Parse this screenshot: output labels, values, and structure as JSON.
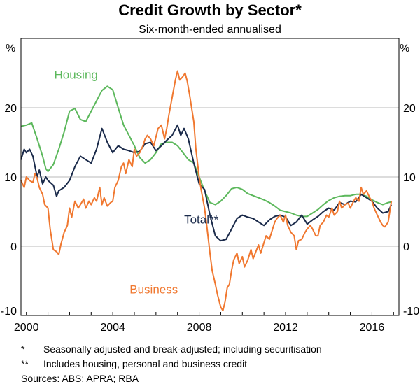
{
  "chart_data": {
    "type": "line",
    "title": "Credit Growth by Sector*",
    "subtitle": "Six-month-ended annualised",
    "ylabel_left": "%",
    "ylabel_right": "%",
    "ylim": [
      -10,
      30
    ],
    "yticks": [
      -10,
      0,
      10,
      20
    ],
    "xlim": [
      1999.75,
      2017.25
    ],
    "xticks": [
      2000,
      2004,
      2008,
      2012,
      2016
    ],
    "grid": true,
    "series": [
      {
        "name": "Housing",
        "color": "#5cb85c",
        "label_at": [
          2002.3,
          24.2
        ],
        "points": [
          [
            1999.75,
            17.3
          ],
          [
            2000.0,
            17.5
          ],
          [
            2000.25,
            17.8
          ],
          [
            2000.5,
            15.5
          ],
          [
            2000.75,
            13.0
          ],
          [
            2000.9,
            11.2
          ],
          [
            2001.0,
            10.8
          ],
          [
            2001.25,
            11.8
          ],
          [
            2001.5,
            14.0
          ],
          [
            2001.75,
            16.5
          ],
          [
            2002.0,
            19.5
          ],
          [
            2002.25,
            19.9
          ],
          [
            2002.5,
            18.3
          ],
          [
            2002.75,
            18.0
          ],
          [
            2003.0,
            19.5
          ],
          [
            2003.25,
            21.0
          ],
          [
            2003.5,
            22.5
          ],
          [
            2003.75,
            23.1
          ],
          [
            2004.0,
            22.6
          ],
          [
            2004.25,
            20.0
          ],
          [
            2004.5,
            17.5
          ],
          [
            2004.75,
            16.0
          ],
          [
            2005.0,
            14.5
          ],
          [
            2005.25,
            12.8
          ],
          [
            2005.5,
            12.0
          ],
          [
            2005.75,
            12.5
          ],
          [
            2006.0,
            13.5
          ],
          [
            2006.25,
            14.8
          ],
          [
            2006.5,
            15.0
          ],
          [
            2006.75,
            15.0
          ],
          [
            2007.0,
            14.5
          ],
          [
            2007.25,
            13.5
          ],
          [
            2007.5,
            12.5
          ],
          [
            2007.75,
            12.0
          ],
          [
            2008.0,
            10.0
          ],
          [
            2008.25,
            8.0
          ],
          [
            2008.5,
            6.3
          ],
          [
            2008.75,
            6.0
          ],
          [
            2009.0,
            6.5
          ],
          [
            2009.25,
            7.3
          ],
          [
            2009.5,
            8.3
          ],
          [
            2009.75,
            8.5
          ],
          [
            2010.0,
            8.2
          ],
          [
            2010.25,
            7.6
          ],
          [
            2010.5,
            7.3
          ],
          [
            2010.75,
            7.0
          ],
          [
            2011.0,
            6.7
          ],
          [
            2011.25,
            6.3
          ],
          [
            2011.5,
            5.8
          ],
          [
            2011.75,
            5.2
          ],
          [
            2012.0,
            5.0
          ],
          [
            2012.25,
            4.8
          ],
          [
            2012.5,
            4.5
          ],
          [
            2012.75,
            4.3
          ],
          [
            2013.0,
            4.3
          ],
          [
            2013.25,
            4.8
          ],
          [
            2013.5,
            5.3
          ],
          [
            2013.75,
            6.0
          ],
          [
            2014.0,
            6.6
          ],
          [
            2014.25,
            7.0
          ],
          [
            2014.5,
            7.2
          ],
          [
            2014.75,
            7.3
          ],
          [
            2015.0,
            7.3
          ],
          [
            2015.25,
            7.5
          ],
          [
            2015.5,
            7.5
          ],
          [
            2015.75,
            7.2
          ],
          [
            2016.0,
            6.7
          ],
          [
            2016.25,
            6.3
          ],
          [
            2016.5,
            6.0
          ],
          [
            2016.75,
            6.3
          ],
          [
            2016.9,
            6.4
          ]
        ]
      },
      {
        "name": "Total**",
        "color": "#1a2a4a",
        "label_at": [
          2008.1,
          3.3
        ],
        "points": [
          [
            1999.75,
            12.5
          ],
          [
            1999.9,
            14.0
          ],
          [
            2000.0,
            13.5
          ],
          [
            2000.15,
            14.0
          ],
          [
            2000.3,
            13.0
          ],
          [
            2000.5,
            10.0
          ],
          [
            2000.6,
            11.0
          ],
          [
            2000.75,
            9.0
          ],
          [
            2000.9,
            10.0
          ],
          [
            2001.0,
            9.5
          ],
          [
            2001.25,
            8.8
          ],
          [
            2001.4,
            7.2
          ],
          [
            2001.5,
            8.0
          ],
          [
            2001.75,
            8.5
          ],
          [
            2002.0,
            9.5
          ],
          [
            2002.25,
            11.5
          ],
          [
            2002.5,
            13.0
          ],
          [
            2002.75,
            12.5
          ],
          [
            2003.0,
            12.0
          ],
          [
            2003.25,
            14.0
          ],
          [
            2003.5,
            17.0
          ],
          [
            2003.75,
            15.0
          ],
          [
            2004.0,
            13.5
          ],
          [
            2004.25,
            14.5
          ],
          [
            2004.5,
            14.0
          ],
          [
            2004.75,
            13.8
          ],
          [
            2005.0,
            13.5
          ],
          [
            2005.25,
            13.7
          ],
          [
            2005.5,
            14.8
          ],
          [
            2005.75,
            15.0
          ],
          [
            2006.0,
            13.8
          ],
          [
            2006.25,
            14.5
          ],
          [
            2006.5,
            15.3
          ],
          [
            2006.75,
            16.0
          ],
          [
            2007.0,
            17.5
          ],
          [
            2007.15,
            16.0
          ],
          [
            2007.3,
            17.0
          ],
          [
            2007.5,
            15.5
          ],
          [
            2007.75,
            12.0
          ],
          [
            2008.0,
            9.0
          ],
          [
            2008.25,
            8.2
          ],
          [
            2008.5,
            4.5
          ],
          [
            2008.75,
            1.5
          ],
          [
            2009.0,
            0.8
          ],
          [
            2009.25,
            1.0
          ],
          [
            2009.5,
            2.5
          ],
          [
            2009.75,
            4.0
          ],
          [
            2010.0,
            4.5
          ],
          [
            2010.25,
            4.2
          ],
          [
            2010.5,
            4.0
          ],
          [
            2010.75,
            3.5
          ],
          [
            2011.0,
            3.0
          ],
          [
            2011.25,
            3.8
          ],
          [
            2011.5,
            4.3
          ],
          [
            2011.75,
            4.5
          ],
          [
            2012.0,
            4.2
          ],
          [
            2012.25,
            3.0
          ],
          [
            2012.5,
            3.5
          ],
          [
            2012.75,
            4.5
          ],
          [
            2013.0,
            3.2
          ],
          [
            2013.25,
            3.8
          ],
          [
            2013.5,
            4.3
          ],
          [
            2013.75,
            5.0
          ],
          [
            2014.0,
            5.5
          ],
          [
            2014.25,
            5.2
          ],
          [
            2014.5,
            6.3
          ],
          [
            2014.75,
            6.0
          ],
          [
            2015.0,
            6.5
          ],
          [
            2015.25,
            6.4
          ],
          [
            2015.5,
            7.5
          ],
          [
            2015.75,
            7.0
          ],
          [
            2016.0,
            6.5
          ],
          [
            2016.25,
            5.5
          ],
          [
            2016.5,
            4.8
          ],
          [
            2016.75,
            5.0
          ],
          [
            2016.9,
            6.0
          ]
        ]
      },
      {
        "name": "Business",
        "color": "#f07830",
        "label_at": [
          2005.9,
          -6.8
        ],
        "points": [
          [
            1999.75,
            9.5
          ],
          [
            1999.9,
            8.5
          ],
          [
            2000.0,
            10.0
          ],
          [
            2000.15,
            9.5
          ],
          [
            2000.3,
            9.2
          ],
          [
            2000.4,
            10.5
          ],
          [
            2000.5,
            9.8
          ],
          [
            2000.6,
            8.5
          ],
          [
            2000.75,
            7.5
          ],
          [
            2000.85,
            6.0
          ],
          [
            2001.0,
            5.5
          ],
          [
            2001.1,
            2.5
          ],
          [
            2001.25,
            -0.5
          ],
          [
            2001.4,
            -0.8
          ],
          [
            2001.5,
            -1.2
          ],
          [
            2001.6,
            0.3
          ],
          [
            2001.75,
            2.0
          ],
          [
            2001.9,
            3.0
          ],
          [
            2002.0,
            5.5
          ],
          [
            2002.1,
            4.2
          ],
          [
            2002.25,
            6.5
          ],
          [
            2002.4,
            5.5
          ],
          [
            2002.5,
            6.0
          ],
          [
            2002.65,
            6.8
          ],
          [
            2002.75,
            5.5
          ],
          [
            2002.9,
            6.5
          ],
          [
            2003.0,
            6.0
          ],
          [
            2003.15,
            7.0
          ],
          [
            2003.25,
            6.5
          ],
          [
            2003.4,
            8.5
          ],
          [
            2003.5,
            6.0
          ],
          [
            2003.6,
            7.0
          ],
          [
            2003.75,
            5.8
          ],
          [
            2003.9,
            6.3
          ],
          [
            2004.0,
            6.5
          ],
          [
            2004.1,
            8.5
          ],
          [
            2004.25,
            9.5
          ],
          [
            2004.4,
            11.5
          ],
          [
            2004.5,
            12.0
          ],
          [
            2004.6,
            10.5
          ],
          [
            2004.75,
            12.5
          ],
          [
            2004.9,
            11.5
          ],
          [
            2005.0,
            14.0
          ],
          [
            2005.1,
            13.0
          ],
          [
            2005.25,
            13.5
          ],
          [
            2005.4,
            14.5
          ],
          [
            2005.5,
            15.5
          ],
          [
            2005.6,
            16.0
          ],
          [
            2005.75,
            15.5
          ],
          [
            2005.9,
            14.5
          ],
          [
            2006.0,
            15.8
          ],
          [
            2006.1,
            17.0
          ],
          [
            2006.25,
            17.5
          ],
          [
            2006.4,
            15.5
          ],
          [
            2006.5,
            17.0
          ],
          [
            2006.6,
            19.0
          ],
          [
            2006.75,
            21.5
          ],
          [
            2006.9,
            24.0
          ],
          [
            2007.0,
            25.3
          ],
          [
            2007.1,
            24.0
          ],
          [
            2007.25,
            24.5
          ],
          [
            2007.35,
            25.0
          ],
          [
            2007.45,
            23.8
          ],
          [
            2007.55,
            22.0
          ],
          [
            2007.65,
            20.0
          ],
          [
            2007.75,
            18.0
          ],
          [
            2007.85,
            14.0
          ],
          [
            2008.0,
            10.0
          ],
          [
            2008.1,
            8.0
          ],
          [
            2008.25,
            5.5
          ],
          [
            2008.35,
            3.0
          ],
          [
            2008.5,
            -1.0
          ],
          [
            2008.6,
            -3.5
          ],
          [
            2008.75,
            -5.5
          ],
          [
            2008.85,
            -7.0
          ],
          [
            2009.0,
            -8.8
          ],
          [
            2009.1,
            -9.3
          ],
          [
            2009.2,
            -8.0
          ],
          [
            2009.3,
            -6.0
          ],
          [
            2009.4,
            -5.5
          ],
          [
            2009.5,
            -3.5
          ],
          [
            2009.6,
            -2.0
          ],
          [
            2009.75,
            -1.0
          ],
          [
            2009.85,
            -2.5
          ],
          [
            2010.0,
            -1.5
          ],
          [
            2010.1,
            -3.0
          ],
          [
            2010.25,
            -2.0
          ],
          [
            2010.4,
            -0.5
          ],
          [
            2010.5,
            -1.8
          ],
          [
            2010.6,
            -1.0
          ],
          [
            2010.75,
            0.2
          ],
          [
            2010.85,
            -1.0
          ],
          [
            2011.0,
            0.5
          ],
          [
            2011.1,
            1.5
          ],
          [
            2011.25,
            1.0
          ],
          [
            2011.4,
            2.5
          ],
          [
            2011.5,
            3.5
          ],
          [
            2011.6,
            4.0
          ],
          [
            2011.75,
            4.5
          ],
          [
            2011.9,
            3.5
          ],
          [
            2012.0,
            4.5
          ],
          [
            2012.1,
            3.0
          ],
          [
            2012.25,
            2.0
          ],
          [
            2012.4,
            1.5
          ],
          [
            2012.5,
            -0.5
          ],
          [
            2012.6,
            0.8
          ],
          [
            2012.75,
            1.0
          ],
          [
            2012.9,
            2.0
          ],
          [
            2013.0,
            2.5
          ],
          [
            2013.15,
            3.0
          ],
          [
            2013.25,
            2.5
          ],
          [
            2013.4,
            1.5
          ],
          [
            2013.5,
            1.5
          ],
          [
            2013.6,
            3.0
          ],
          [
            2013.75,
            3.5
          ],
          [
            2013.9,
            4.5
          ],
          [
            2014.0,
            4.2
          ],
          [
            2014.15,
            5.5
          ],
          [
            2014.25,
            4.5
          ],
          [
            2014.4,
            5.0
          ],
          [
            2014.5,
            6.5
          ],
          [
            2014.6,
            5.5
          ],
          [
            2014.75,
            6.0
          ],
          [
            2014.9,
            6.2
          ],
          [
            2015.0,
            5.5
          ],
          [
            2015.15,
            6.5
          ],
          [
            2015.25,
            7.0
          ],
          [
            2015.4,
            6.5
          ],
          [
            2015.5,
            8.5
          ],
          [
            2015.6,
            7.5
          ],
          [
            2015.75,
            8.0
          ],
          [
            2015.9,
            7.0
          ],
          [
            2016.0,
            6.5
          ],
          [
            2016.1,
            5.5
          ],
          [
            2016.25,
            4.5
          ],
          [
            2016.4,
            3.5
          ],
          [
            2016.5,
            3.0
          ],
          [
            2016.6,
            2.8
          ],
          [
            2016.75,
            3.5
          ],
          [
            2016.9,
            6.5
          ]
        ]
      }
    ]
  },
  "notes": [
    {
      "mark": "*",
      "text": "Seasonally adjusted and break-adjusted; including securitisation"
    },
    {
      "mark": "**",
      "text": "Includes housing, personal and business credit"
    }
  ],
  "sources": "Sources:  ABS; APRA; RBA"
}
